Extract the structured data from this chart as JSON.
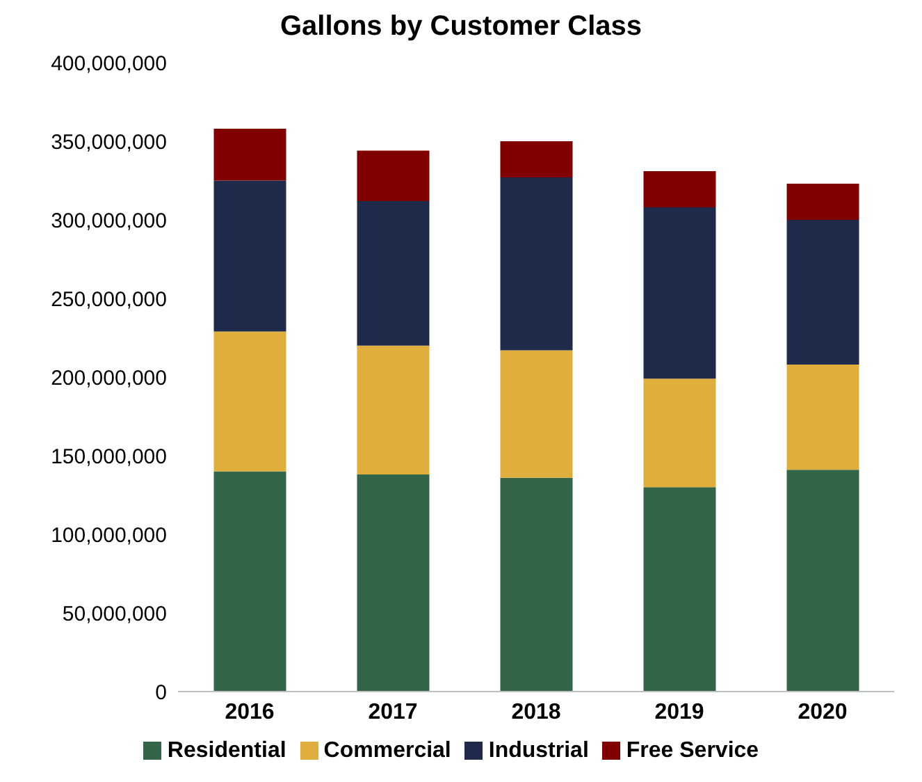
{
  "chart_data": {
    "type": "bar",
    "title": "Gallons by Customer Class",
    "categories": [
      "2016",
      "2017",
      "2018",
      "2019",
      "2020"
    ],
    "stacked": true,
    "series": [
      {
        "name": "Residential",
        "color": "#336649",
        "values": [
          140000000,
          138000000,
          136000000,
          130000000,
          141000000
        ]
      },
      {
        "name": "Commercial",
        "color": "#e0ae3c",
        "values": [
          89000000,
          82000000,
          81000000,
          69000000,
          67000000
        ]
      },
      {
        "name": "Industrial",
        "color": "#1f2a4a",
        "values": [
          96000000,
          92000000,
          110000000,
          109000000,
          92000000
        ]
      },
      {
        "name": "Free Service",
        "color": "#800000",
        "values": [
          33000000,
          32000000,
          23000000,
          23000000,
          23000000
        ]
      }
    ],
    "ylim": [
      0,
      400000000
    ],
    "yticks": [
      0,
      {
        "value": 50000000,
        "label": "50,000,000"
      },
      {
        "value": 100000000,
        "label": "100,000,000"
      },
      {
        "value": 150000000,
        "label": "150,000,000"
      },
      {
        "value": 200000000,
        "label": "200,000,000"
      },
      {
        "value": 250000000,
        "label": "250,000,000"
      },
      {
        "value": 300000000,
        "label": "300,000,000"
      },
      {
        "value": 350000000,
        "label": "350,000,000"
      },
      {
        "value": 400000000,
        "label": "400,000,000"
      }
    ],
    "grid": false,
    "legend": "bottom"
  }
}
